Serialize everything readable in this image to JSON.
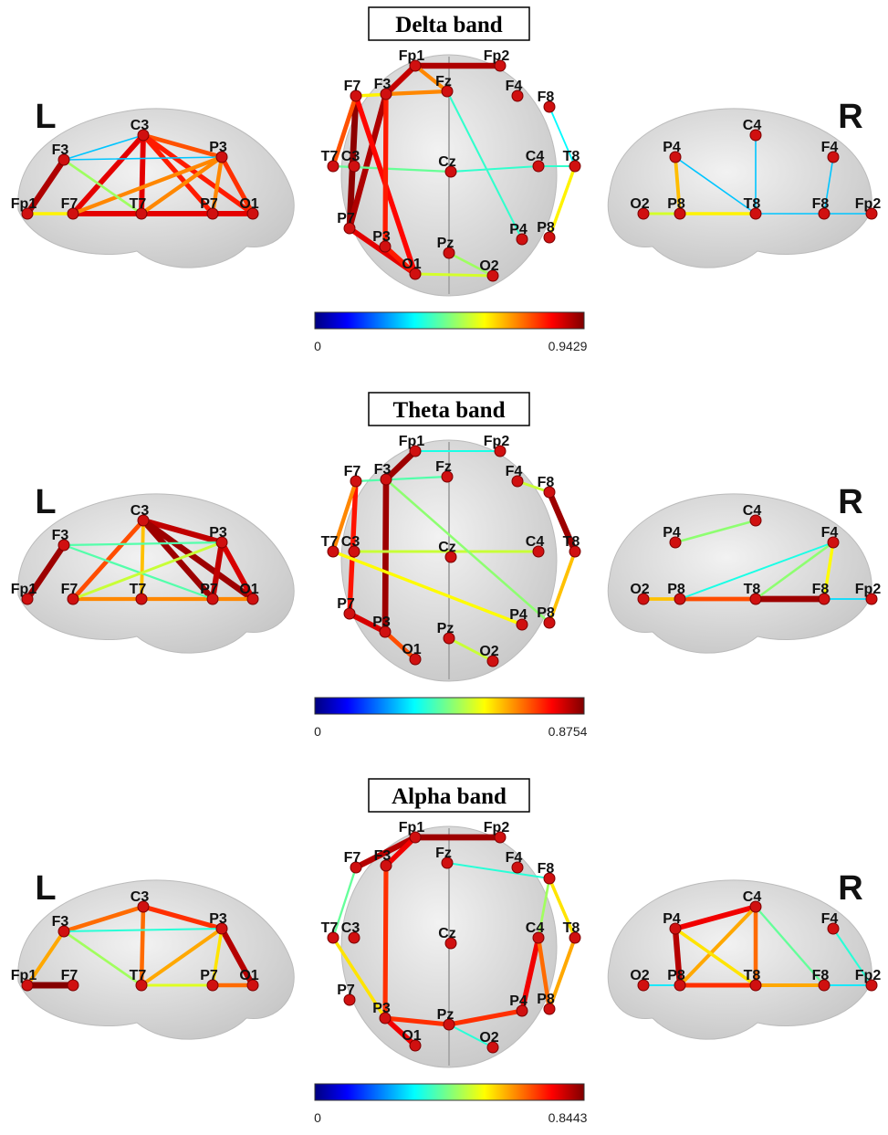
{
  "panels": [
    {
      "title": "Delta band",
      "colorbar": {
        "min": 0,
        "max": 0.9429
      },
      "left": {
        "side": "L",
        "nodes": [
          "Fp1",
          "F7",
          "F3",
          "C3",
          "T7",
          "P3",
          "P7",
          "O1"
        ],
        "edges": [
          {
            "from": "Fp1",
            "to": "F7",
            "value": 0.6
          },
          {
            "from": "Fp1",
            "to": "F3",
            "value": 0.9
          },
          {
            "from": "F3",
            "to": "C3",
            "value": 0.3
          },
          {
            "from": "F7",
            "to": "C3",
            "value": 0.85
          },
          {
            "from": "C3",
            "to": "T7",
            "value": 0.85
          },
          {
            "from": "C3",
            "to": "P3",
            "value": 0.75
          },
          {
            "from": "C3",
            "to": "P7",
            "value": 0.8
          },
          {
            "from": "C3",
            "to": "O1",
            "value": 0.8
          },
          {
            "from": "F7",
            "to": "O1",
            "value": 0.85
          },
          {
            "from": "F3",
            "to": "P3",
            "value": 0.3
          },
          {
            "from": "P3",
            "to": "P7",
            "value": 0.7
          },
          {
            "from": "P3",
            "to": "O1",
            "value": 0.78
          },
          {
            "from": "F7",
            "to": "P3",
            "value": 0.7
          },
          {
            "from": "T7",
            "to": "P3",
            "value": 0.7
          },
          {
            "from": "F3",
            "to": "T7",
            "value": 0.5
          }
        ]
      },
      "top": {
        "nodes": [
          "Fp1",
          "Fp2",
          "F7",
          "F3",
          "Fz",
          "F4",
          "F8",
          "T7",
          "C3",
          "Cz",
          "C4",
          "T8",
          "P7",
          "P3",
          "Pz",
          "P4",
          "P8",
          "O1",
          "O2"
        ],
        "edges": [
          {
            "from": "Fp1",
            "to": "Fp2",
            "value": 0.9
          },
          {
            "from": "F7",
            "to": "P7",
            "value": 0.93
          },
          {
            "from": "F7",
            "to": "T7",
            "value": 0.75
          },
          {
            "from": "Fp1",
            "to": "F3",
            "value": 0.88
          },
          {
            "from": "F3",
            "to": "P7",
            "value": 0.9
          },
          {
            "from": "F7",
            "to": "Fz",
            "value": 0.6
          },
          {
            "from": "Fp1",
            "to": "Fz",
            "value": 0.7
          },
          {
            "from": "F3",
            "to": "Fz",
            "value": 0.7
          },
          {
            "from": "T7",
            "to": "Cz",
            "value": 0.45
          },
          {
            "from": "Cz",
            "to": "C4",
            "value": 0.4
          },
          {
            "from": "P7",
            "to": "O1",
            "value": 0.85
          },
          {
            "from": "F7",
            "to": "O1",
            "value": 0.82
          },
          {
            "from": "T8",
            "to": "P8",
            "value": 0.6
          },
          {
            "from": "C4",
            "to": "T8",
            "value": 0.4
          },
          {
            "from": "F8",
            "to": "T8",
            "value": 0.35
          },
          {
            "from": "Fz",
            "to": "P4",
            "value": 0.4
          },
          {
            "from": "Pz",
            "to": "O2",
            "value": 0.5
          },
          {
            "from": "P3",
            "to": "O1",
            "value": 0.8
          },
          {
            "from": "O1",
            "to": "O2",
            "value": 0.55
          },
          {
            "from": "F3",
            "to": "P3",
            "value": 0.8
          }
        ]
      },
      "right": {
        "side": "R",
        "nodes": [
          "O2",
          "P8",
          "P4",
          "C4",
          "T8",
          "F4",
          "F8",
          "Fp2"
        ],
        "edges": [
          {
            "from": "O2",
            "to": "P8",
            "value": 0.55
          },
          {
            "from": "P8",
            "to": "T8",
            "value": 0.6
          },
          {
            "from": "T8",
            "to": "F8",
            "value": 0.3
          },
          {
            "from": "F8",
            "to": "Fp2",
            "value": 0.3
          },
          {
            "from": "P4",
            "to": "P8",
            "value": 0.65
          },
          {
            "from": "P4",
            "to": "T8",
            "value": 0.3
          },
          {
            "from": "C4",
            "to": "T8",
            "value": 0.3
          },
          {
            "from": "F4",
            "to": "F8",
            "value": 0.3
          }
        ]
      }
    },
    {
      "title": "Theta band",
      "colorbar": {
        "min": 0,
        "max": 0.8754
      },
      "left": {
        "side": "L",
        "nodes": [
          "Fp1",
          "F7",
          "F3",
          "C3",
          "T7",
          "P3",
          "P7",
          "O1"
        ],
        "edges": [
          {
            "from": "Fp1",
            "to": "F3",
            "value": 0.85
          },
          {
            "from": "F7",
            "to": "C3",
            "value": 0.7
          },
          {
            "from": "C3",
            "to": "P3",
            "value": 0.82
          },
          {
            "from": "C3",
            "to": "P7",
            "value": 0.85
          },
          {
            "from": "C3",
            "to": "O1",
            "value": 0.85
          },
          {
            "from": "P3",
            "to": "O1",
            "value": 0.8
          },
          {
            "from": "P3",
            "to": "P7",
            "value": 0.82
          },
          {
            "from": "F7",
            "to": "O1",
            "value": 0.65
          },
          {
            "from": "C3",
            "to": "T7",
            "value": 0.6
          },
          {
            "from": "F3",
            "to": "P3",
            "value": 0.4
          },
          {
            "from": "F3",
            "to": "P7",
            "value": 0.4
          },
          {
            "from": "F7",
            "to": "P3",
            "value": 0.5
          }
        ]
      },
      "top": {
        "nodes": [
          "Fp1",
          "Fp2",
          "F7",
          "F3",
          "Fz",
          "F4",
          "F8",
          "T7",
          "C3",
          "Cz",
          "C4",
          "T8",
          "P7",
          "P3",
          "Pz",
          "P4",
          "P8",
          "O1",
          "O2"
        ],
        "edges": [
          {
            "from": "Fp1",
            "to": "F3",
            "value": 0.85
          },
          {
            "from": "F7",
            "to": "P7",
            "value": 0.75
          },
          {
            "from": "F3",
            "to": "P3",
            "value": 0.85
          },
          {
            "from": "F7",
            "to": "T7",
            "value": 0.65
          },
          {
            "from": "F8",
            "to": "T8",
            "value": 0.85
          },
          {
            "from": "F4",
            "to": "F8",
            "value": 0.5
          },
          {
            "from": "T8",
            "to": "P8",
            "value": 0.6
          },
          {
            "from": "Fp1",
            "to": "Fp2",
            "value": 0.35
          },
          {
            "from": "F7",
            "to": "Fz",
            "value": 0.4
          },
          {
            "from": "P7",
            "to": "P3",
            "value": 0.8
          },
          {
            "from": "Pz",
            "to": "O2",
            "value": 0.5
          },
          {
            "from": "C3",
            "to": "C4",
            "value": 0.5
          },
          {
            "from": "T7",
            "to": "P4",
            "value": 0.55
          },
          {
            "from": "P3",
            "to": "O1",
            "value": 0.7
          },
          {
            "from": "F3",
            "to": "P8",
            "value": 0.45
          }
        ]
      },
      "right": {
        "side": "R",
        "nodes": [
          "O2",
          "P8",
          "P4",
          "C4",
          "T8",
          "F4",
          "F8",
          "Fp2"
        ],
        "edges": [
          {
            "from": "O2",
            "to": "P8",
            "value": 0.6
          },
          {
            "from": "P8",
            "to": "T8",
            "value": 0.7
          },
          {
            "from": "T8",
            "to": "F8",
            "value": 0.85
          },
          {
            "from": "P4",
            "to": "C4",
            "value": 0.45
          },
          {
            "from": "F4",
            "to": "F8",
            "value": 0.55
          },
          {
            "from": "F4",
            "to": "T8",
            "value": 0.45
          },
          {
            "from": "P8",
            "to": "F4",
            "value": 0.35
          },
          {
            "from": "F8",
            "to": "Fp2",
            "value": 0.3
          }
        ]
      }
    },
    {
      "title": "Alpha band",
      "colorbar": {
        "min": 0,
        "max": 0.8443
      },
      "left": {
        "side": "L",
        "nodes": [
          "Fp1",
          "F7",
          "F3",
          "C3",
          "T7",
          "P3",
          "P7",
          "O1"
        ],
        "edges": [
          {
            "from": "Fp1",
            "to": "F7",
            "value": 0.84
          },
          {
            "from": "Fp1",
            "to": "F3",
            "value": 0.6
          },
          {
            "from": "F3",
            "to": "C3",
            "value": 0.65
          },
          {
            "from": "C3",
            "to": "P3",
            "value": 0.7
          },
          {
            "from": "P3",
            "to": "O1",
            "value": 0.8
          },
          {
            "from": "F3",
            "to": "T7",
            "value": 0.45
          },
          {
            "from": "T7",
            "to": "P7",
            "value": 0.5
          },
          {
            "from": "P7",
            "to": "O1",
            "value": 0.65
          },
          {
            "from": "T7",
            "to": "P3",
            "value": 0.6
          },
          {
            "from": "C3",
            "to": "T7",
            "value": 0.65
          },
          {
            "from": "F3",
            "to": "P3",
            "value": 0.35
          },
          {
            "from": "P3",
            "to": "P7",
            "value": 0.55
          }
        ]
      },
      "top": {
        "nodes": [
          "Fp1",
          "Fp2",
          "F7",
          "F3",
          "Fz",
          "F4",
          "F8",
          "T7",
          "C3",
          "Cz",
          "C4",
          "T8",
          "P7",
          "P3",
          "Pz",
          "P4",
          "P8",
          "O1",
          "O2"
        ],
        "edges": [
          {
            "from": "Fp1",
            "to": "Fp2",
            "value": 0.82
          },
          {
            "from": "F7",
            "to": "Fp1",
            "value": 0.8
          },
          {
            "from": "F3",
            "to": "Fp1",
            "value": 0.75
          },
          {
            "from": "F3",
            "to": "P3",
            "value": 0.7
          },
          {
            "from": "P3",
            "to": "Pz",
            "value": 0.7
          },
          {
            "from": "Pz",
            "to": "P4",
            "value": 0.7
          },
          {
            "from": "P4",
            "to": "C4",
            "value": 0.75
          },
          {
            "from": "C4",
            "to": "F8",
            "value": 0.45
          },
          {
            "from": "F8",
            "to": "T8",
            "value": 0.55
          },
          {
            "from": "T8",
            "to": "P8",
            "value": 0.6
          },
          {
            "from": "P3",
            "to": "O1",
            "value": 0.75
          },
          {
            "from": "T7",
            "to": "P3",
            "value": 0.55
          },
          {
            "from": "Fz",
            "to": "F8",
            "value": 0.35
          },
          {
            "from": "F7",
            "to": "T7",
            "value": 0.4
          },
          {
            "from": "C4",
            "to": "P8",
            "value": 0.65
          },
          {
            "from": "Pz",
            "to": "O2",
            "value": 0.35
          }
        ]
      },
      "right": {
        "side": "R",
        "nodes": [
          "O2",
          "P8",
          "P4",
          "C4",
          "T8",
          "F4",
          "F8",
          "Fp2"
        ],
        "edges": [
          {
            "from": "P4",
            "to": "C4",
            "value": 0.75
          },
          {
            "from": "P4",
            "to": "P8",
            "value": 0.8
          },
          {
            "from": "P8",
            "to": "T8",
            "value": 0.7
          },
          {
            "from": "T8",
            "to": "F8",
            "value": 0.6
          },
          {
            "from": "C4",
            "to": "T8",
            "value": 0.65
          },
          {
            "from": "C4",
            "to": "P8",
            "value": 0.6
          },
          {
            "from": "P4",
            "to": "T8",
            "value": 0.55
          },
          {
            "from": "C4",
            "to": "F8",
            "value": 0.4
          },
          {
            "from": "F4",
            "to": "Fp2",
            "value": 0.35
          },
          {
            "from": "F8",
            "to": "Fp2",
            "value": 0.3
          },
          {
            "from": "O2",
            "to": "P8",
            "value": 0.3
          }
        ]
      }
    }
  ]
}
